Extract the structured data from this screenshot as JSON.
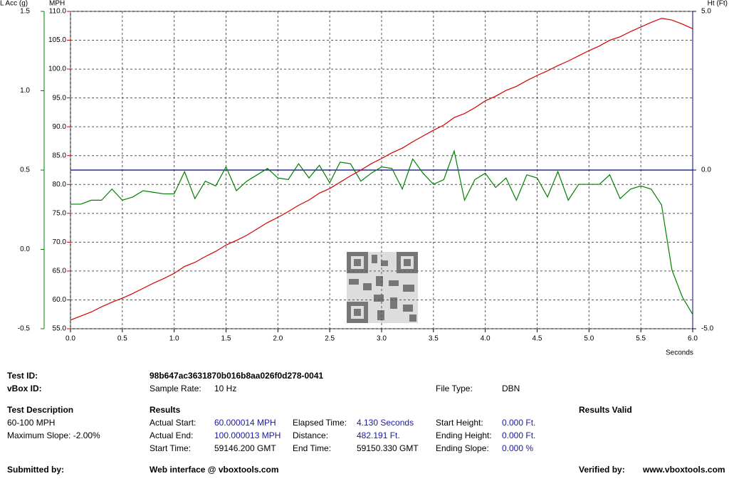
{
  "chart_data": {
    "type": "line",
    "xlabel": "Seconds",
    "x": [
      0,
      0.1,
      0.2,
      0.3,
      0.4,
      0.5,
      0.6,
      0.7,
      0.8,
      0.9,
      1.0,
      1.1,
      1.2,
      1.3,
      1.4,
      1.5,
      1.6,
      1.7,
      1.8,
      1.9,
      2.0,
      2.1,
      2.2,
      2.3,
      2.4,
      2.5,
      2.6,
      2.7,
      2.8,
      2.9,
      3.0,
      3.1,
      3.2,
      3.3,
      3.4,
      3.5,
      3.6,
      3.7,
      3.8,
      3.9,
      4.0,
      4.1,
      4.2,
      4.3,
      4.4,
      4.5,
      4.6,
      4.7,
      4.8,
      4.9,
      5.0,
      5.1,
      5.2,
      5.3,
      5.4,
      5.5,
      5.6,
      5.7,
      5.8,
      5.9,
      6.0
    ],
    "xlim": [
      0,
      6
    ],
    "xticks": [
      {
        "value": 0,
        "label": "0.0"
      },
      0.5,
      {
        "value": 1,
        "label": "1.0"
      },
      1.5,
      {
        "value": 2,
        "label": "2.0"
      },
      2.5,
      {
        "value": 3,
        "label": "3.0"
      },
      3.5,
      {
        "value": 4,
        "label": "4.0"
      },
      4.5,
      {
        "value": 5,
        "label": "5.0"
      },
      5.5,
      {
        "value": 6,
        "label": "6.0"
      }
    ],
    "ylim": [
      55,
      110
    ],
    "yticks": [
      {
        "value": 55,
        "label": "55.0"
      },
      {
        "value": 60,
        "label": "60.0"
      },
      {
        "value": 65,
        "label": "65.0"
      },
      {
        "value": 70,
        "label": "70.0"
      },
      {
        "value": 75,
        "label": "75.0"
      },
      {
        "value": 80,
        "label": "80.0"
      },
      {
        "value": 85,
        "label": "85.0"
      },
      {
        "value": 90,
        "label": "90.0"
      },
      {
        "value": 95,
        "label": "95.0"
      },
      {
        "value": 100,
        "label": "100.0"
      },
      {
        "value": 105,
        "label": "105.0"
      },
      {
        "value": 110,
        "label": "110.0"
      }
    ],
    "y2lim": [
      -5,
      5
    ],
    "y2ticks": [
      {
        "value": -5,
        "label": "-5.0"
      },
      {
        "value": 0,
        "label": "0.0"
      },
      {
        "value": 5,
        "label": "5.0"
      }
    ],
    "y3lim": [
      -0.5,
      1.5
    ],
    "y3ticks": [
      -0.5,
      {
        "value": 0,
        "label": "0.0"
      },
      0.5,
      {
        "value": 1,
        "label": "1.0"
      },
      1.5
    ],
    "grid": true,
    "series": [
      {
        "name": "MPH",
        "color": "#d40000",
        "axis": "y",
        "values": [
          56.5,
          57.2,
          57.9,
          58.8,
          59.6,
          60.3,
          61.1,
          62.0,
          62.9,
          63.7,
          64.6,
          65.8,
          66.5,
          67.5,
          68.4,
          69.5,
          70.3,
          71.2,
          72.3,
          73.4,
          74.3,
          75.3,
          76.4,
          77.3,
          78.5,
          79.3,
          80.4,
          81.5,
          82.5,
          83.6,
          84.5,
          85.5,
          86.3,
          87.4,
          88.4,
          89.4,
          90.3,
          91.6,
          92.3,
          93.3,
          94.5,
          95.3,
          96.3,
          97.0,
          98.0,
          98.9,
          99.7,
          100.6,
          101.4,
          102.3,
          103.2,
          104.0,
          105.0,
          105.6,
          106.5,
          107.3,
          108.1,
          108.8,
          108.5,
          107.8,
          107.0
        ]
      },
      {
        "name": "L Acc (g)",
        "color": "#008000",
        "axis": "y3",
        "values": [
          0.285,
          0.285,
          0.31,
          0.31,
          0.38,
          0.31,
          0.33,
          0.37,
          0.36,
          0.35,
          0.35,
          0.49,
          0.32,
          0.43,
          0.4,
          0.52,
          0.37,
          0.43,
          0.47,
          0.51,
          0.45,
          0.44,
          0.54,
          0.45,
          0.53,
          0.42,
          0.55,
          0.54,
          0.43,
          0.48,
          0.52,
          0.51,
          0.38,
          0.57,
          0.48,
          0.41,
          0.44,
          0.62,
          0.31,
          0.44,
          0.48,
          0.39,
          0.45,
          0.31,
          0.47,
          0.45,
          0.33,
          0.49,
          0.31,
          0.41,
          0.41,
          0.41,
          0.47,
          0.32,
          0.38,
          0.4,
          0.38,
          0.28,
          -0.13,
          -0.3,
          -0.41
        ]
      },
      {
        "name": "Ht (Ft)",
        "color": "#000080",
        "axis": "y2",
        "values": [
          0,
          0,
          0,
          0,
          0,
          0,
          0,
          0,
          0,
          0,
          0,
          0,
          0,
          0,
          0,
          0,
          0,
          0,
          0,
          0,
          0,
          0,
          0,
          0,
          0,
          0,
          0,
          0,
          0,
          0,
          0,
          0,
          0,
          0,
          0,
          0,
          0,
          0,
          0,
          0,
          0,
          0,
          0,
          0,
          0,
          0,
          0,
          0,
          0,
          0,
          0,
          0,
          0,
          0,
          0,
          0,
          0,
          0,
          0,
          0,
          0
        ]
      }
    ]
  },
  "info": {
    "test_id_label": "Test ID:",
    "test_id": "98b647ac3631870b016b8aa026f0d278-0041",
    "vbox_id_label": "vBox ID:",
    "sample_rate_label": "Sample Rate:",
    "sample_rate": "10 Hz",
    "file_type_label": "File Type:",
    "file_type": "DBN"
  },
  "description": {
    "title": "Test Description",
    "lines": [
      "60-100 MPH",
      "Maximum Slope:  -2.00%"
    ]
  },
  "results": {
    "title": "Results",
    "status": "Results Valid",
    "items": [
      [
        "Actual Start:",
        "60.000014 MPH"
      ],
      [
        "Actual End:",
        "100.000013 MPH"
      ],
      [
        "Start Time:",
        "59146.200 GMT"
      ],
      [
        "Elapsed Time:",
        "4.130 Seconds"
      ],
      [
        "Distance:",
        "482.191 Ft."
      ],
      [
        "End Time:",
        "59150.330 GMT"
      ],
      [
        "Start Height:",
        "0.000 Ft."
      ],
      [
        "Ending Height:",
        "0.000 Ft."
      ],
      [
        "Ending Slope:",
        "0.000 %"
      ]
    ]
  },
  "footer": {
    "submitted": "Submitted by:",
    "web": "Web interface @ vboxtools.com",
    "verified": "Verified by:",
    "site": "www.vboxtools.com"
  }
}
